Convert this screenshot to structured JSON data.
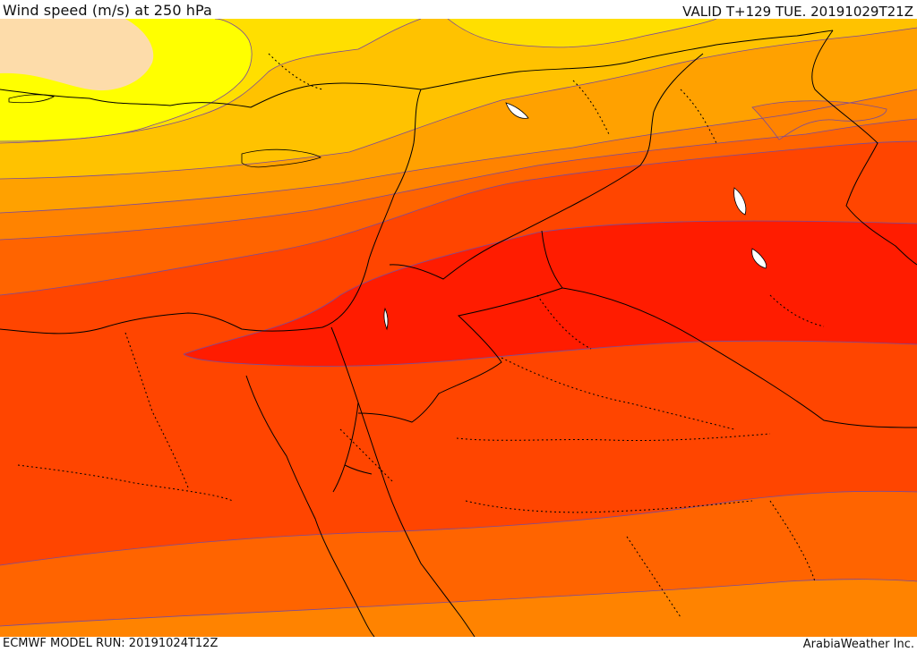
{
  "header": {
    "title": "Wind speed (m/s) at 250 hPa",
    "valid": "VALID T+129 TUE. 20191029T21Z"
  },
  "footer": {
    "model_run": "ECMWF MODEL RUN: 20191024T12Z",
    "credit": "ArabiaWeather Inc."
  },
  "colors": {
    "band_1": "#fddcaa",
    "band_2": "#ffff00",
    "band_3": "#ffdf00",
    "band_4": "#ffc200",
    "band_5": "#ffa100",
    "band_6": "#ff8300",
    "band_7": "#ff6400",
    "band_8": "#ff4500",
    "band_9": "#ff1c00",
    "contour_line": "#7a4a9a",
    "border_line": "#000000"
  }
}
